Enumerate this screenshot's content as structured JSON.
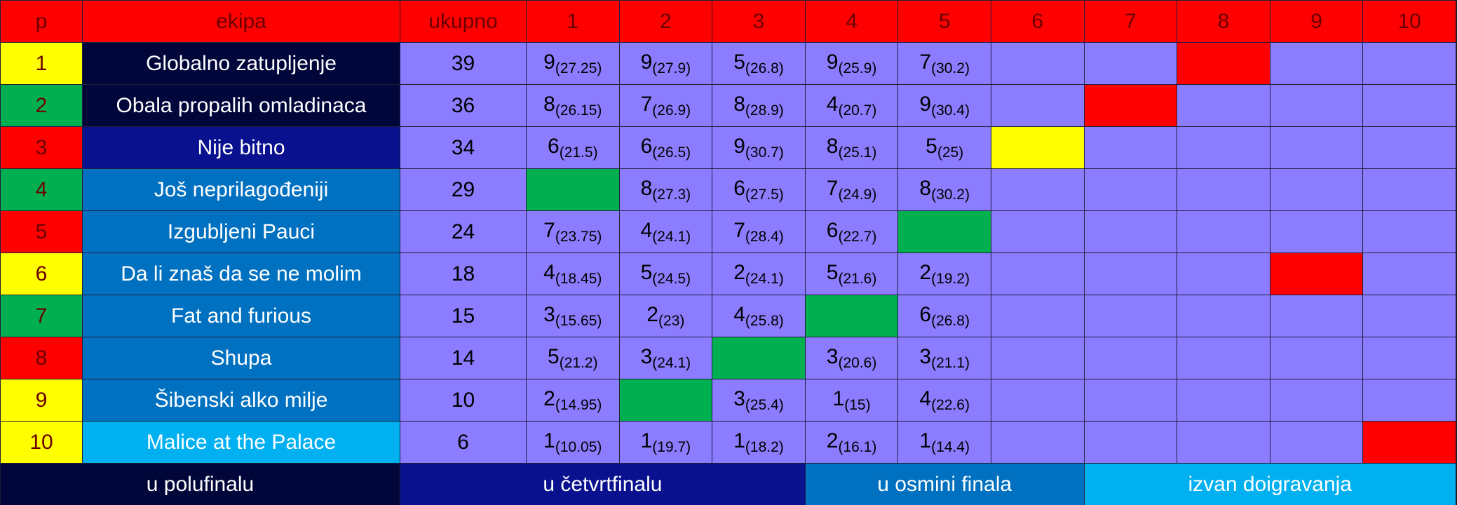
{
  "header": {
    "columns": [
      "p",
      "ekipa",
      "ukupno",
      "1",
      "2",
      "3",
      "4",
      "5",
      "6",
      "7",
      "8",
      "9",
      "10"
    ],
    "color": "#ff0000"
  },
  "rows": [
    {
      "p": 1,
      "p_color": "#ffff00",
      "team": "Globalno zatupljenje",
      "team_color": "#00063a",
      "total": 39,
      "rounds": [
        {
          "score": 9,
          "detail": "(27.25)"
        },
        {
          "score": 9,
          "detail": "(27.9)"
        },
        {
          "score": 5,
          "detail": "(26.8)"
        },
        {
          "score": 9,
          "detail": "(25.9)"
        },
        {
          "score": 7,
          "detail": "(30.2)"
        },
        null,
        null,
        {
          "fill": "#ff0000"
        },
        null,
        null
      ]
    },
    {
      "p": 2,
      "p_color": "#00b050",
      "team": "Obala propalih omladinaca",
      "team_color": "#00063a",
      "total": 36,
      "rounds": [
        {
          "score": 8,
          "detail": "(26.15)"
        },
        {
          "score": 7,
          "detail": "(26.9)"
        },
        {
          "score": 8,
          "detail": "(28.9)"
        },
        {
          "score": 4,
          "detail": "(20.7)"
        },
        {
          "score": 9,
          "detail": "(30.4)"
        },
        null,
        {
          "fill": "#ff0000"
        },
        null,
        null,
        null
      ]
    },
    {
      "p": 3,
      "p_color": "#ff0000",
      "team": "Nije bitno",
      "team_color": "#0a118f",
      "total": 34,
      "rounds": [
        {
          "score": 6,
          "detail": "(21.5)"
        },
        {
          "score": 6,
          "detail": "(26.5)"
        },
        {
          "score": 9,
          "detail": "(30.7)"
        },
        {
          "score": 8,
          "detail": "(25.1)"
        },
        {
          "score": 5,
          "detail": "(25)"
        },
        {
          "fill": "#ffff00"
        },
        null,
        null,
        null,
        null
      ]
    },
    {
      "p": 4,
      "p_color": "#00b050",
      "team": "Još neprilagođeniji",
      "team_color": "#0070c0",
      "total": 29,
      "rounds": [
        {
          "fill": "#00b050"
        },
        {
          "score": 8,
          "detail": "(27.3)"
        },
        {
          "score": 6,
          "detail": "(27.5)"
        },
        {
          "score": 7,
          "detail": "(24.9)"
        },
        {
          "score": 8,
          "detail": "(30.2)"
        },
        null,
        null,
        null,
        null,
        null
      ]
    },
    {
      "p": 5,
      "p_color": "#ff0000",
      "team": "Izgubljeni Pauci",
      "team_color": "#0070c0",
      "total": 24,
      "rounds": [
        {
          "score": 7,
          "detail": "(23.75)"
        },
        {
          "score": 4,
          "detail": "(24.1)"
        },
        {
          "score": 7,
          "detail": "(28.4)"
        },
        {
          "score": 6,
          "detail": "(22.7)"
        },
        {
          "fill": "#00b050"
        },
        null,
        null,
        null,
        null,
        null
      ]
    },
    {
      "p": 6,
      "p_color": "#ffff00",
      "team": "Da li znaš da se ne molim",
      "team_color": "#0070c0",
      "total": 18,
      "rounds": [
        {
          "score": 4,
          "detail": "(18.45)"
        },
        {
          "score": 5,
          "detail": "(24.5)"
        },
        {
          "score": 2,
          "detail": "(24.1)"
        },
        {
          "score": 5,
          "detail": "(21.6)"
        },
        {
          "score": 2,
          "detail": "(19.2)"
        },
        null,
        null,
        null,
        {
          "fill": "#ff0000"
        },
        null
      ]
    },
    {
      "p": 7,
      "p_color": "#00b050",
      "team": "Fat and furious",
      "team_color": "#0070c0",
      "total": 15,
      "rounds": [
        {
          "score": 3,
          "detail": "(15.65)"
        },
        {
          "score": 2,
          "detail": "(23)"
        },
        {
          "score": 4,
          "detail": "(25.8)"
        },
        {
          "fill": "#00b050"
        },
        {
          "score": 6,
          "detail": "(26.8)"
        },
        null,
        null,
        null,
        null,
        null
      ]
    },
    {
      "p": 8,
      "p_color": "#ff0000",
      "team": "Shupa",
      "team_color": "#0070c0",
      "total": 14,
      "rounds": [
        {
          "score": 5,
          "detail": "(21.2)"
        },
        {
          "score": 3,
          "detail": "(24.1)"
        },
        {
          "fill": "#00b050"
        },
        {
          "score": 3,
          "detail": "(20.6)"
        },
        {
          "score": 3,
          "detail": "(21.1)"
        },
        null,
        null,
        null,
        null,
        null
      ]
    },
    {
      "p": 9,
      "p_color": "#ffff00",
      "team": "Šibenski alko milje",
      "team_color": "#0070c0",
      "total": 10,
      "rounds": [
        {
          "score": 2,
          "detail": "(14.95)"
        },
        {
          "fill": "#00b050"
        },
        {
          "score": 3,
          "detail": "(25.4)"
        },
        {
          "score": 1,
          "detail": "(15)"
        },
        {
          "score": 4,
          "detail": "(22.6)"
        },
        null,
        null,
        null,
        null,
        null
      ]
    },
    {
      "p": 10,
      "p_color": "#ffff00",
      "team": "Malice at the Palace",
      "team_color": "#00b0f0",
      "total": 6,
      "rounds": [
        {
          "score": 1,
          "detail": "(10.05)"
        },
        {
          "score": 1,
          "detail": "(19.7)"
        },
        {
          "score": 1,
          "detail": "(18.2)"
        },
        {
          "score": 2,
          "detail": "(16.1)"
        },
        {
          "score": 1,
          "detail": "(14.4)"
        },
        null,
        null,
        null,
        null,
        {
          "fill": "#ff0000"
        }
      ]
    }
  ],
  "cell_color": "#8c7cff",
  "legend": [
    {
      "label": "u polufinalu",
      "color": "#00063a"
    },
    {
      "label": "u četvrtfinalu",
      "color": "#0a118f"
    },
    {
      "label": "u osmini finala",
      "color": "#0070c0"
    },
    {
      "label": "izvan doigravanja",
      "color": "#00b0f0"
    }
  ]
}
